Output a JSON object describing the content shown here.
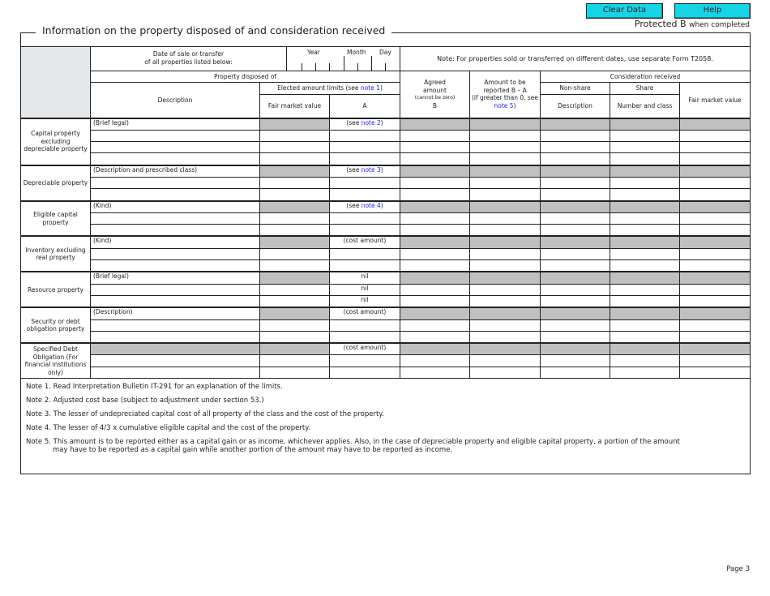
{
  "buttons": {
    "clear": "Clear Data",
    "help": "Help",
    "color": "#17d3e6"
  },
  "protected": {
    "main": "Protected B",
    "small": "when completed"
  },
  "title": "Information on the property disposed of and consideration received",
  "header": {
    "date_label_1": "Date of sale or transfer",
    "date_label_2": "of all properties listed below:",
    "year": "Year",
    "month": "Month",
    "day": "Day",
    "note": "Note: For properties sold or transferred on different dates, use separate Form T2058.",
    "property_disposed": "Property disposed of",
    "description": "Description",
    "elected_pre": "Elected amount limits (see ",
    "elected_link": "note 1",
    "elected_post": ")",
    "fmv": "Fair market  value",
    "a": "A",
    "agreed_1": "Agreed",
    "agreed_2": "amount",
    "agreed_3": "(cannot be zero)",
    "agreed_4": "B",
    "reported_1": "Amount to be",
    "reported_2": "reported B – A",
    "reported_3": "(if greater than 0, see",
    "reported_link": "note 5",
    "reported_post": ")",
    "consideration": "Consideration received",
    "non_share": "Non-share",
    "share": "Share",
    "ns_description": "Description",
    "number_class": "Number and class",
    "fmv2": "Fair market value"
  },
  "sections": [
    {
      "label": "Capital property excluding depreciable property",
      "hint": "(Brief legal)",
      "a": [
        {
          "pre": "(see ",
          "link": "note 2",
          "post": ")"
        },
        {
          "t": ""
        },
        {
          "t": ""
        },
        {
          "t": ""
        }
      ]
    },
    {
      "label": "Depreciable property",
      "hint": "(Description and prescribed class)",
      "a": [
        {
          "pre": "(see ",
          "link": "note 3",
          "post": ")"
        },
        {
          "t": ""
        },
        {
          "t": ""
        }
      ]
    },
    {
      "label": "Eligible capital property",
      "hint": "(Kind)",
      "a": [
        {
          "pre": "(see ",
          "link": "note 4",
          "post": ")"
        },
        {
          "t": ""
        },
        {
          "t": ""
        }
      ]
    },
    {
      "label": "Inventory excluding real property",
      "hint": "(Kind)",
      "a": [
        {
          "t": "(cost amount)"
        },
        {
          "t": ""
        },
        {
          "t": ""
        }
      ]
    },
    {
      "label": "Resource property",
      "hint": "(Brief legal)",
      "a": [
        {
          "t": "nil"
        },
        {
          "t": "nil"
        },
        {
          "t": "nil"
        }
      ]
    },
    {
      "label": "Security or debt obligation property",
      "hint": "(Description)",
      "a": [
        {
          "t": "(cost amount)"
        },
        {
          "t": ""
        },
        {
          "t": ""
        }
      ]
    },
    {
      "label": "Specified Debt Obligation (For financial institutions only)",
      "hint": "",
      "desc_gray": true,
      "a": [
        {
          "t": "(cost amount)"
        },
        {
          "t": ""
        },
        {
          "t": ""
        }
      ]
    }
  ],
  "notes": [
    "Note 1. Read Interpretation Bulletin IT-291 for an explanation of the limits.",
    "Note 2. Adjusted cost base (subject to adjustment under section 53.)",
    "Note 3. The lesser of undepreciated capital cost of all property of the class and the cost of the property.",
    "Note 4. The lesser of 4/3 x cumulative eligible capital and the cost of the property.",
    "Note 5. This amount is to be reported either as a capital gain or as income, whichever applies. Also, in the case of depreciable property and eligible capital property, a portion of the amount"
  ],
  "note5_cont": "may have to be reported as a capital gain while another portion of the amount may have to be reported as income.",
  "page": "Page 3"
}
